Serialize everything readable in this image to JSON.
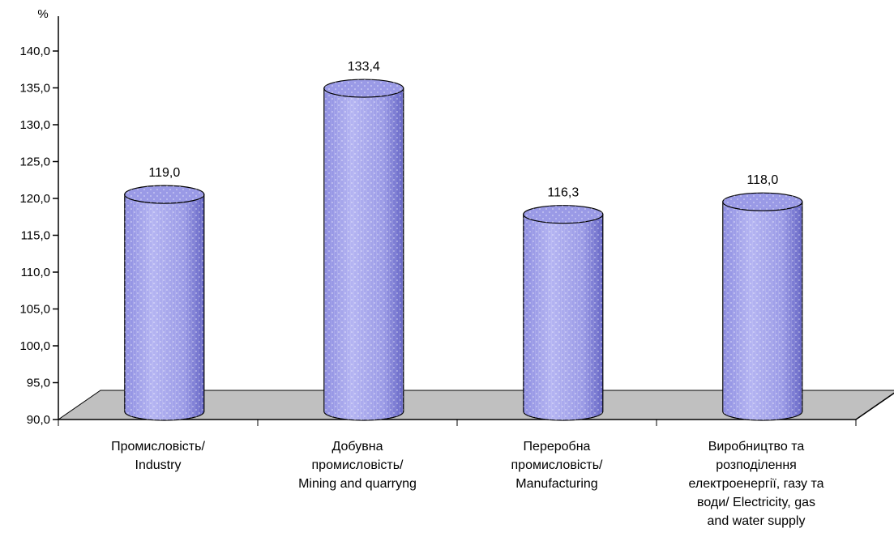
{
  "chart_data": {
    "type": "bar",
    "style": "3d-cylinder",
    "unit_label": "%",
    "categories": [
      [
        "Промисловість/",
        "Industry"
      ],
      [
        "Добувна",
        "промисловість/",
        "Mining and quarryng"
      ],
      [
        "Переробна",
        "промисловість/",
        "Manufacturing"
      ],
      [
        "Виробництво та",
        "розподілення",
        "електроенергії, газу та",
        "води/ Electricity, gas",
        "and water supply"
      ]
    ],
    "values": [
      119.0,
      133.4,
      116.3,
      118.0
    ],
    "data_labels": [
      "119,0",
      "133,4",
      "116,3",
      "118,0"
    ],
    "ylim": [
      90,
      140
    ],
    "yticks": [
      90,
      95,
      100,
      105,
      110,
      115,
      120,
      125,
      130,
      135,
      140
    ],
    "ytick_labels": [
      "90,0",
      "95,0",
      "100,0",
      "105,0",
      "110,0",
      "115,0",
      "120,0",
      "125,0",
      "130,0",
      "135,0",
      "140,0"
    ],
    "title": "",
    "xlabel": "",
    "grid": false,
    "legend": "none",
    "colors": {
      "bar_fill": "#9a9ae6",
      "bar_dark": "#5a5ab8",
      "bar_light": "#c8c8f4",
      "floor_fill": "#c0c0c0",
      "axis": "#000000"
    }
  }
}
